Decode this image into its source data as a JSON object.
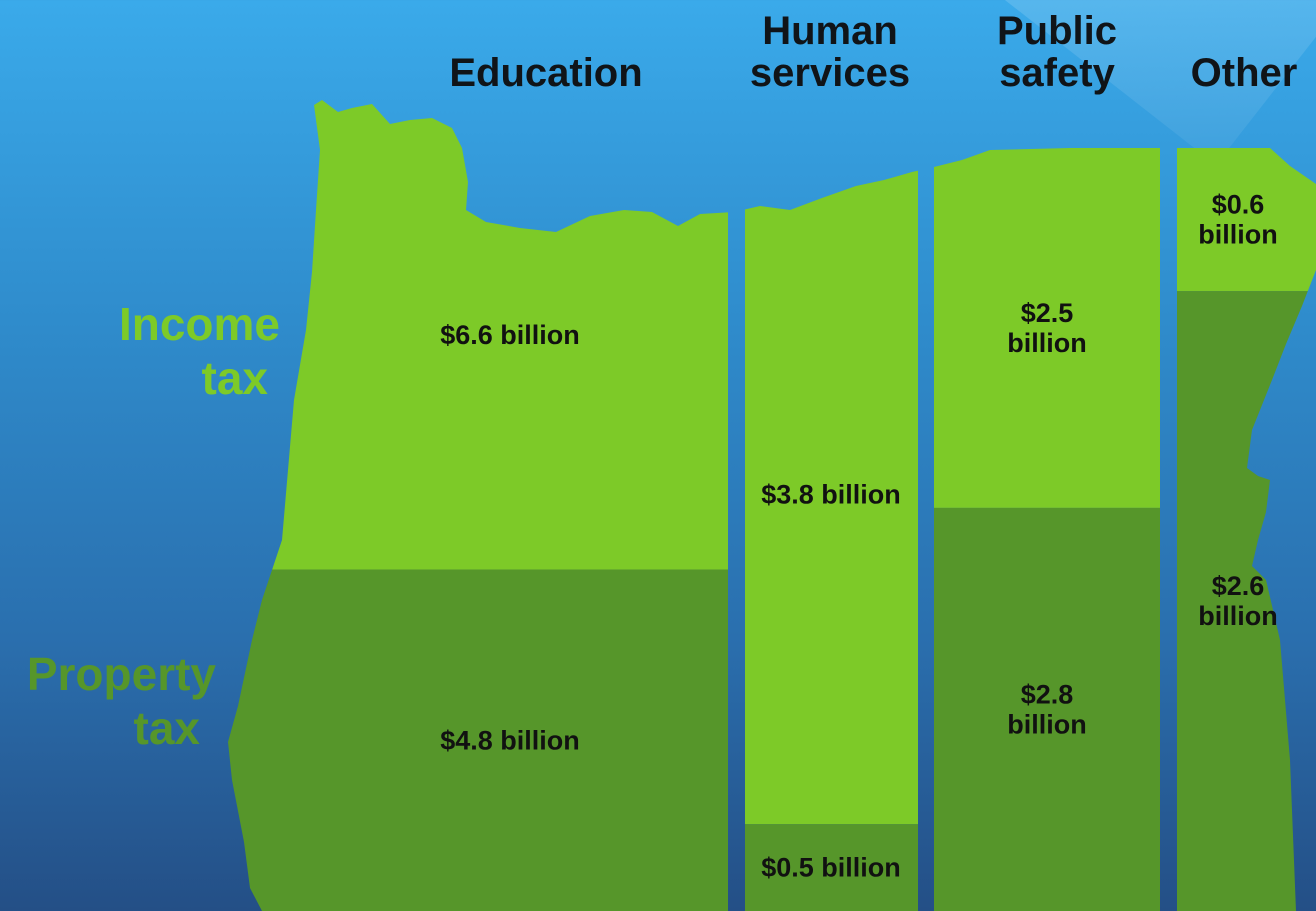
{
  "chart_data": {
    "type": "bar",
    "title": "",
    "xlabel": "",
    "ylabel": "",
    "categories": [
      "Education",
      "Human services",
      "Public safety",
      "Other"
    ],
    "category_label_lines": [
      [
        "Education"
      ],
      [
        "Human",
        "services"
      ],
      [
        "Public",
        "safety"
      ],
      [
        "Other"
      ]
    ],
    "series": [
      {
        "name": "Income tax",
        "label_lines": [
          "Income",
          "tax"
        ],
        "color": "#7dca28",
        "values": [
          6.6,
          3.8,
          2.5,
          0.6
        ]
      },
      {
        "name": "Property tax",
        "label_lines": [
          "Property",
          "tax"
        ],
        "color": "#56962a",
        "values": [
          4.8,
          0.5,
          2.8,
          2.6
        ]
      }
    ],
    "value_labels": {
      "Income tax": [
        [
          "$6.6 billion"
        ],
        [
          "$3.8 billion"
        ],
        [
          "$2.5",
          "billion"
        ],
        [
          "$0.6",
          "billion"
        ]
      ],
      "Property tax": [
        [
          "$4.8 billion"
        ],
        [
          "$0.5 billion"
        ],
        [
          "$2.8",
          "billion"
        ],
        [
          "$2.6",
          "billion"
        ]
      ]
    },
    "stacked": true,
    "normalized": true,
    "legend": "left",
    "grid": false
  },
  "colors": {
    "background_top": "#3aaaea",
    "background_bottom": "#244f86",
    "income_tax": "#7dca28",
    "property_tax": "#56962a",
    "category_text": "#101418",
    "value_text": "#111111"
  }
}
